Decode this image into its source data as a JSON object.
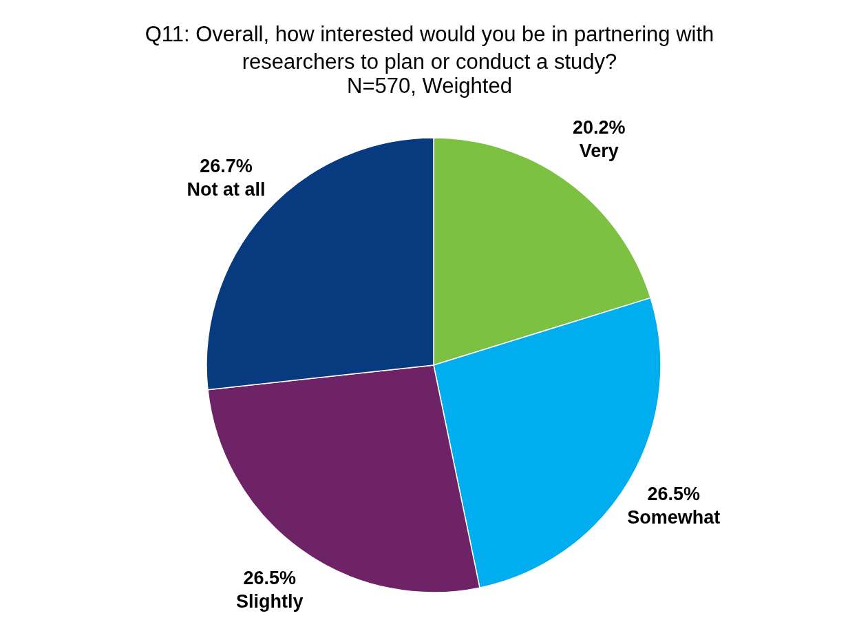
{
  "chart_data": {
    "type": "pie",
    "title": "Q11: Overall, how interested would you be in partnering with researchers to plan or conduct a study?",
    "subtitle": "N=570, Weighted",
    "categories": [
      "Very",
      "Somewhat",
      "Slightly",
      "Not at all"
    ],
    "values": [
      20.2,
      26.5,
      26.5,
      26.7
    ],
    "value_labels": [
      "20.2%",
      "26.5%",
      "26.5%",
      "26.7%"
    ],
    "colors": [
      "#7dc142",
      "#00adef",
      "#6f2367",
      "#083a80"
    ],
    "legend": false
  }
}
